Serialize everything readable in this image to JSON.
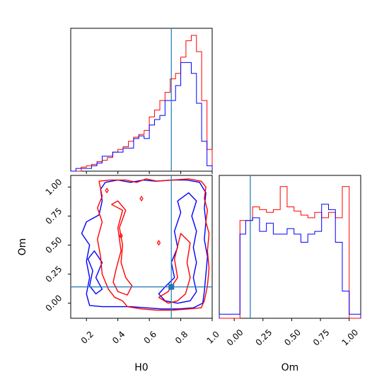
{
  "chart_data": {
    "type": "corner",
    "parameters": [
      "H0",
      "Om"
    ],
    "xlabels": {
      "H0": "H0",
      "Om": "Om"
    },
    "ylabel_2d": "Om",
    "truth": {
      "H0": 0.74,
      "Om": 0.14
    },
    "ranges": {
      "H0": [
        0.1,
        1.0
      ],
      "Om": [
        -0.13,
        1.1
      ]
    },
    "ticks": {
      "H0": [
        "0.2",
        "0.4",
        "0.6",
        "0.8",
        "1.0"
      ],
      "Om": [
        "0.00",
        "0.25",
        "0.50",
        "0.75",
        "1.00"
      ]
    },
    "colors": {
      "series_red": "#ff0000",
      "series_blue": "#0000ff",
      "truth": "#1f77b4"
    },
    "hist_H0": {
      "edges": [
        0.1,
        0.133,
        0.167,
        0.2,
        0.233,
        0.267,
        0.3,
        0.333,
        0.367,
        0.4,
        0.433,
        0.467,
        0.5,
        0.533,
        0.567,
        0.6,
        0.633,
        0.667,
        0.7,
        0.733,
        0.767,
        0.8,
        0.833,
        0.867,
        0.9,
        0.933,
        0.967,
        1.0
      ],
      "red": [
        0.0,
        0.0,
        0.03,
        0.04,
        0.05,
        0.07,
        0.08,
        0.1,
        0.14,
        0.16,
        0.18,
        0.22,
        0.25,
        0.27,
        0.3,
        0.4,
        0.45,
        0.52,
        0.58,
        0.68,
        0.72,
        0.84,
        0.96,
        1.0,
        0.88,
        0.52,
        0.16
      ],
      "blue": [
        0.0,
        0.02,
        0.02,
        0.02,
        0.04,
        0.06,
        0.11,
        0.11,
        0.14,
        0.14,
        0.17,
        0.17,
        0.24,
        0.26,
        0.24,
        0.34,
        0.38,
        0.41,
        0.52,
        0.52,
        0.63,
        0.8,
        0.8,
        0.72,
        0.5,
        0.22,
        0.04
      ]
    },
    "hist_Om": {
      "edges": [
        -0.13,
        -0.07,
        -0.01,
        0.05,
        0.1,
        0.16,
        0.22,
        0.28,
        0.34,
        0.4,
        0.46,
        0.52,
        0.58,
        0.64,
        0.7,
        0.76,
        0.82,
        0.88,
        0.94,
        1.0,
        1.06,
        1.1
      ],
      "red": [
        0,
        0,
        0,
        0.72,
        0.72,
        0.82,
        0.8,
        0.78,
        0.8,
        0.97,
        0.82,
        0.79,
        0.76,
        0.74,
        0.78,
        0.74,
        0.78,
        0.74,
        0.97,
        0,
        0
      ],
      "blue": [
        0.03,
        0.03,
        0.03,
        0.62,
        0.72,
        0.74,
        0.64,
        0.7,
        0.62,
        0.62,
        0.66,
        0.62,
        0.56,
        0.62,
        0.64,
        0.84,
        0.8,
        0.56,
        0.2,
        0.03,
        0.03
      ]
    },
    "contours": {
      "red_outer": [
        [
          0.28,
          1.05
        ],
        [
          0.35,
          1.06
        ],
        [
          0.45,
          1.06
        ],
        [
          0.52,
          1.04
        ],
        [
          0.58,
          1.07
        ],
        [
          0.65,
          1.05
        ],
        [
          0.75,
          1.06
        ],
        [
          0.85,
          1.07
        ],
        [
          0.93,
          1.05
        ],
        [
          0.96,
          1.0
        ],
        [
          0.95,
          0.9
        ],
        [
          0.97,
          0.8
        ],
        [
          0.96,
          0.7
        ],
        [
          0.98,
          0.6
        ],
        [
          0.97,
          0.45
        ],
        [
          0.98,
          0.3
        ],
        [
          0.97,
          0.15
        ],
        [
          0.95,
          0.02
        ],
        [
          0.93,
          -0.04
        ],
        [
          0.85,
          -0.05
        ],
        [
          0.75,
          -0.06
        ],
        [
          0.65,
          -0.06
        ],
        [
          0.55,
          -0.05
        ],
        [
          0.46,
          -0.03
        ],
        [
          0.43,
          0.02
        ],
        [
          0.38,
          0.05
        ],
        [
          0.34,
          0.12
        ],
        [
          0.3,
          0.25
        ],
        [
          0.29,
          0.4
        ],
        [
          0.27,
          0.55
        ],
        [
          0.3,
          0.7
        ],
        [
          0.27,
          0.82
        ],
        [
          0.3,
          0.92
        ],
        [
          0.28,
          1.05
        ]
      ],
      "red_inner_left": [
        [
          0.36,
          0.85
        ],
        [
          0.43,
          0.8
        ],
        [
          0.4,
          0.65
        ],
        [
          0.42,
          0.45
        ],
        [
          0.39,
          0.3
        ],
        [
          0.37,
          0.18
        ],
        [
          0.4,
          0.1
        ],
        [
          0.46,
          0.07
        ],
        [
          0.49,
          0.15
        ],
        [
          0.45,
          0.22
        ],
        [
          0.42,
          0.35
        ],
        [
          0.43,
          0.5
        ],
        [
          0.41,
          0.65
        ],
        [
          0.45,
          0.8
        ],
        [
          0.4,
          0.88
        ],
        [
          0.36,
          0.85
        ]
      ],
      "red_inner_right": [
        [
          0.8,
          0.6
        ],
        [
          0.86,
          0.52
        ],
        [
          0.84,
          0.35
        ],
        [
          0.86,
          0.22
        ],
        [
          0.83,
          0.08
        ],
        [
          0.78,
          0.02
        ],
        [
          0.72,
          0.0
        ],
        [
          0.66,
          0.05
        ],
        [
          0.72,
          0.1
        ],
        [
          0.78,
          0.22
        ],
        [
          0.76,
          0.38
        ],
        [
          0.8,
          0.6
        ]
      ],
      "blue_outer": [
        [
          0.32,
          1.04
        ],
        [
          0.4,
          1.06
        ],
        [
          0.48,
          1.04
        ],
        [
          0.56,
          1.06
        ],
        [
          0.64,
          1.05
        ],
        [
          0.74,
          1.06
        ],
        [
          0.84,
          1.06
        ],
        [
          0.92,
          1.04
        ],
        [
          0.96,
          0.95
        ],
        [
          0.95,
          0.82
        ],
        [
          0.96,
          0.7
        ],
        [
          0.95,
          0.55
        ],
        [
          0.97,
          0.4
        ],
        [
          0.96,
          0.25
        ],
        [
          0.95,
          0.1
        ],
        [
          0.94,
          0.0
        ],
        [
          0.88,
          -0.04
        ],
        [
          0.78,
          -0.05
        ],
        [
          0.68,
          -0.05
        ],
        [
          0.58,
          -0.04
        ],
        [
          0.48,
          -0.03
        ],
        [
          0.4,
          -0.03
        ],
        [
          0.3,
          -0.03
        ],
        [
          0.22,
          -0.02
        ],
        [
          0.2,
          0.08
        ],
        [
          0.22,
          0.22
        ],
        [
          0.2,
          0.36
        ],
        [
          0.22,
          0.5
        ],
        [
          0.17,
          0.6
        ],
        [
          0.2,
          0.7
        ],
        [
          0.28,
          0.76
        ],
        [
          0.3,
          0.88
        ],
        [
          0.29,
          0.98
        ],
        [
          0.32,
          1.04
        ]
      ],
      "blue_inner_right": [
        [
          0.85,
          0.95
        ],
        [
          0.9,
          0.88
        ],
        [
          0.87,
          0.75
        ],
        [
          0.9,
          0.62
        ],
        [
          0.88,
          0.48
        ],
        [
          0.9,
          0.35
        ],
        [
          0.88,
          0.22
        ],
        [
          0.9,
          0.1
        ],
        [
          0.86,
          0.02
        ],
        [
          0.78,
          0.0
        ],
        [
          0.7,
          0.02
        ],
        [
          0.66,
          0.08
        ],
        [
          0.7,
          0.14
        ],
        [
          0.76,
          0.22
        ],
        [
          0.74,
          0.35
        ],
        [
          0.78,
          0.48
        ],
        [
          0.76,
          0.62
        ],
        [
          0.8,
          0.78
        ],
        [
          0.78,
          0.88
        ],
        [
          0.85,
          0.95
        ]
      ],
      "blue_inner_left": [
        [
          0.25,
          0.45
        ],
        [
          0.3,
          0.35
        ],
        [
          0.26,
          0.22
        ],
        [
          0.3,
          0.12
        ],
        [
          0.26,
          0.08
        ],
        [
          0.22,
          0.15
        ],
        [
          0.24,
          0.28
        ],
        [
          0.21,
          0.38
        ],
        [
          0.25,
          0.45
        ]
      ],
      "red_dots": [
        [
          0.55,
          0.9
        ],
        [
          0.42,
          0.58
        ],
        [
          0.66,
          0.52
        ],
        [
          0.33,
          0.97
        ]
      ]
    }
  }
}
